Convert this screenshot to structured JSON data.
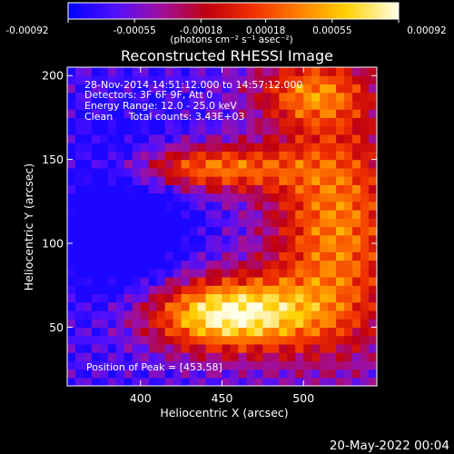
{
  "colorbar": {
    "tick_labels": [
      "-0.00092",
      "-0.00055",
      "-0.00018",
      "0.00018",
      "0.00055",
      "0.00092"
    ],
    "range": [
      -0.00092,
      0.00092
    ],
    "units_label": "(photons cm⁻² s⁻¹ asec⁻²)",
    "colormap": [
      "#0000ff",
      "#7a1fff",
      "#b00000",
      "#e01000",
      "#ff5a00",
      "#ffc000",
      "#ffffd0",
      "#ffffff"
    ]
  },
  "chart_data": {
    "type": "heatmap",
    "title": "Reconstructed RHESSI Image",
    "xlabel": "Heliocentric X (arcsec)",
    "ylabel": "Heliocentric Y (arcsec)",
    "xlim": [
      355,
      545
    ],
    "ylim": [
      15,
      205
    ],
    "x_ticks": [
      400,
      450,
      500
    ],
    "y_ticks": [
      50,
      100,
      150,
      200
    ],
    "annotations": [
      "28-Nov-2014 14:51:12.000 to 14:57:12.000",
      "Detectors: 3F 6F 9F, Att 0",
      "Energy Range: 12.0 - 25.0 keV",
      "Clean     Total counts: 3.43E+03"
    ],
    "peak_label": "Position of Peak = [453,58]",
    "peak_position": [
      453,
      58
    ],
    "grid": false
  },
  "footer": {
    "timestamp": "20-May-2022 00:04"
  }
}
